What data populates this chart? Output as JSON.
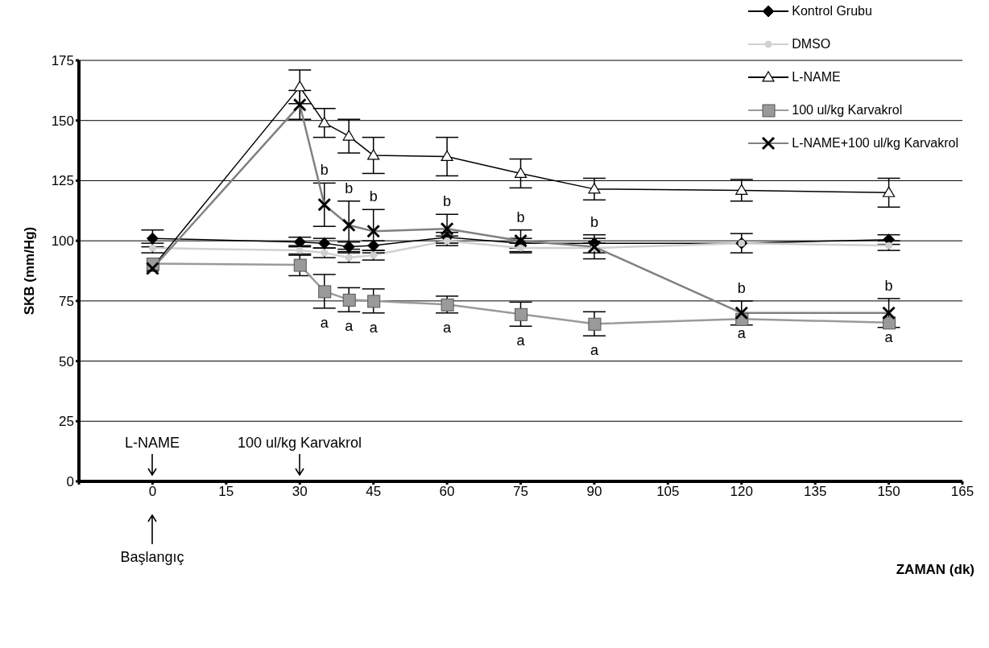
{
  "chart_data": {
    "type": "line",
    "xlabel": "ZAMAN (dk)",
    "ylabel": "SKB (mm/Hg)",
    "x": [
      0,
      30,
      35,
      40,
      45,
      60,
      75,
      90,
      120,
      150
    ],
    "xlim": [
      -15,
      165
    ],
    "xticks": [
      {
        "value": -15,
        "label": null
      },
      0,
      15,
      30,
      45,
      60,
      75,
      90,
      105,
      120,
      135,
      150,
      165
    ],
    "ylim": [
      0,
      175
    ],
    "yticks": [
      0,
      25,
      50,
      75,
      100,
      125,
      150,
      175
    ],
    "grid": "y",
    "legend": "top right",
    "line_style": "solid",
    "series": [
      {
        "name": "Kontrol Grubu",
        "color": "#000000",
        "marker": "diamond",
        "values": [
          101,
          99.5,
          99,
          97.5,
          98,
          101.5,
          99,
          99,
          99,
          100.5
        ],
        "errors": [
          3.5,
          2,
          2,
          2,
          2,
          2,
          2,
          2,
          null,
          2
        ]
      },
      {
        "name": "DMSO",
        "color": "#d0d0d0",
        "marker": "circle",
        "values": [
          97,
          96,
          95,
          93,
          94,
          100,
          97,
          97,
          99,
          98
        ],
        "errors": [
          2,
          2,
          2,
          2,
          2,
          2,
          2,
          2,
          4,
          2
        ]
      },
      {
        "name": "L-NAME",
        "color": "#000000",
        "marker": "triangle",
        "values": [
          89,
          164,
          149,
          143.5,
          135.5,
          135,
          128,
          121.5,
          121,
          120
        ],
        "errors": [
          null,
          7,
          6,
          7,
          7.5,
          8,
          6,
          4.5,
          4.5,
          6
        ]
      },
      {
        "name": "100 ul/kg Karvakrol",
        "color": "#9a9a9a",
        "marker": "square",
        "values": [
          90.5,
          90,
          79,
          75.5,
          75,
          73.5,
          69.5,
          65.5,
          67.5,
          66
        ],
        "errors": [
          null,
          4.5,
          7,
          5,
          5,
          3.5,
          5,
          5,
          null,
          null
        ],
        "value_labels": [
          null,
          null,
          "a",
          "a",
          "a",
          "a",
          "a",
          "a",
          "a",
          "a"
        ]
      },
      {
        "name": "L-NAME+100 ul/kg Karvakrol",
        "color": "#808080",
        "marker": "cross",
        "values": [
          88.5,
          156.5,
          115,
          106.5,
          104,
          105,
          100,
          97.5,
          70,
          70
        ],
        "errors": [
          null,
          6,
          9,
          10,
          9,
          6,
          4.5,
          5,
          5,
          6
        ],
        "value_labels": [
          null,
          null,
          "b",
          "b",
          "b",
          "b",
          "b",
          "b",
          "b",
          "b"
        ]
      }
    ],
    "annotations": [
      "L-NAME",
      "100 ul/kg Karvakrol",
      "Başlangıç"
    ]
  }
}
